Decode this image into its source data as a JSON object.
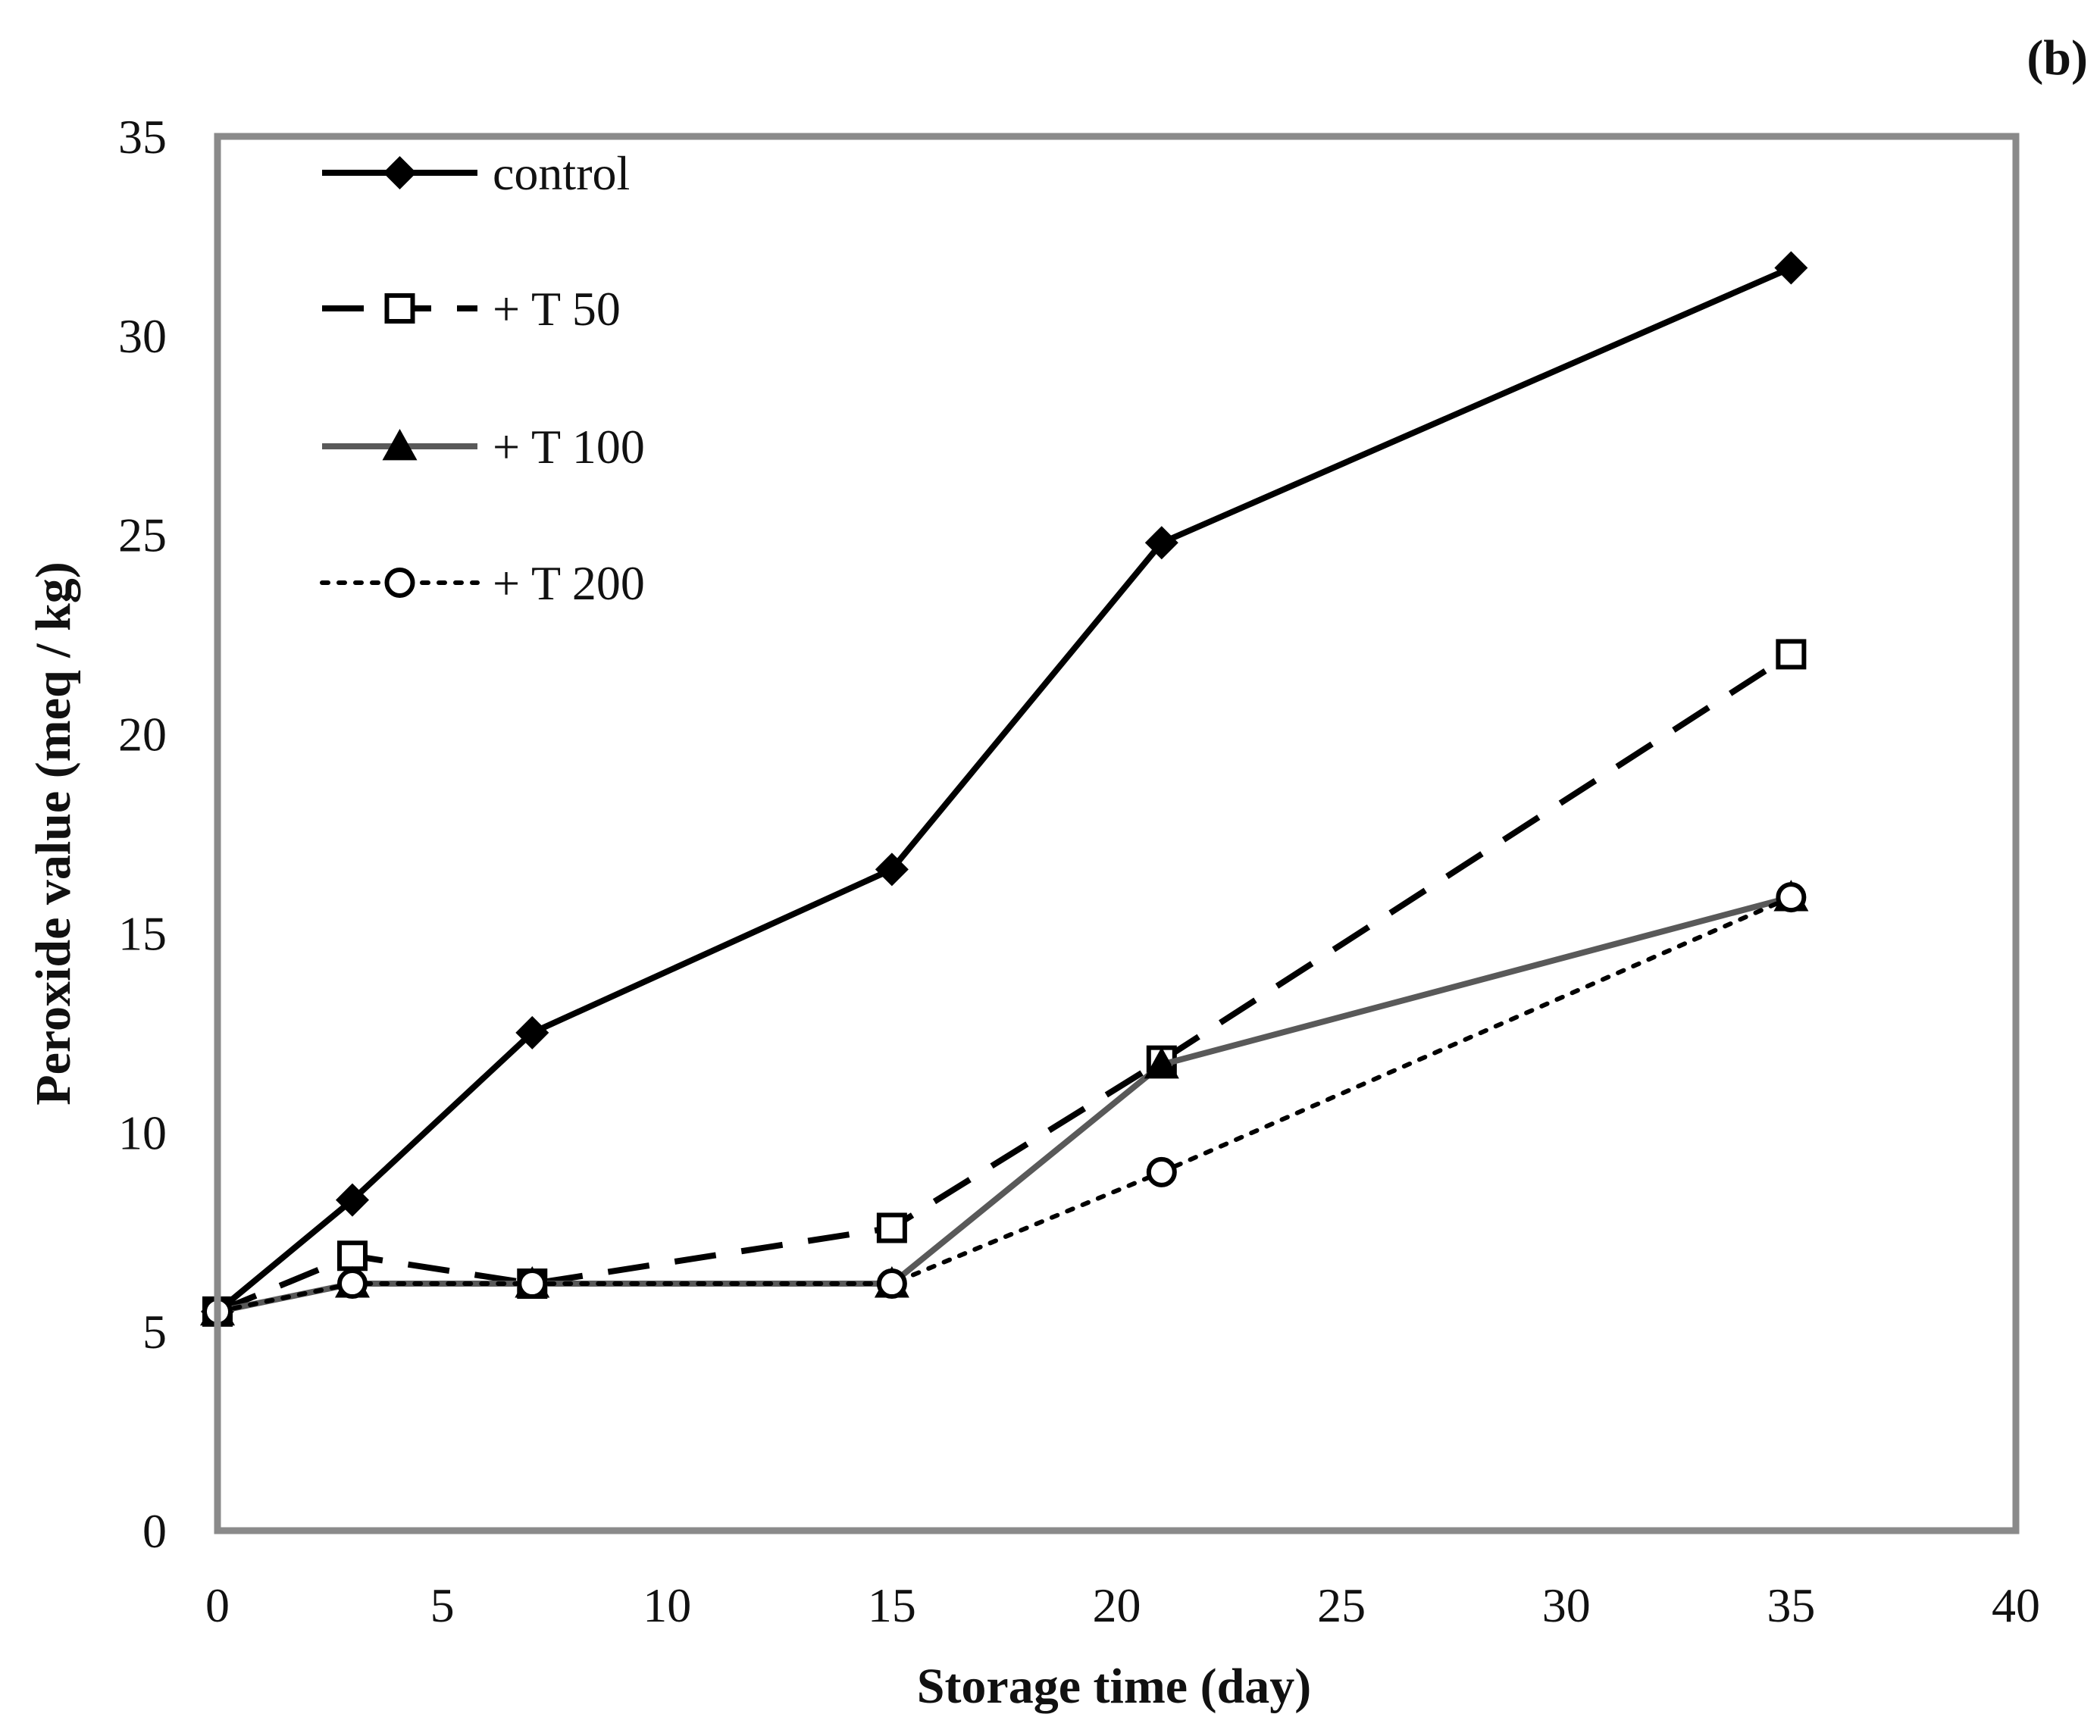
{
  "chart_data": {
    "type": "line",
    "panel_label": "(b)",
    "xlabel": "Storage time (day)",
    "ylabel": "Peroxide value (meq / kg)",
    "xlim": [
      0,
      40
    ],
    "ylim": [
      0,
      35
    ],
    "xticks": [
      0,
      5,
      10,
      15,
      20,
      25,
      30,
      35,
      40
    ],
    "yticks": [
      0,
      5,
      10,
      15,
      20,
      25,
      30,
      35
    ],
    "grid": false,
    "legend_position": "top-left",
    "x": [
      0,
      3,
      7,
      15,
      21,
      35
    ],
    "series": [
      {
        "name": "control",
        "values": [
          5.5,
          8.3,
          12.5,
          16.6,
          24.8,
          31.7
        ],
        "color": "#000000",
        "dash": "solid",
        "marker": "diamond"
      },
      {
        "name": "+ T 50",
        "values": [
          5.5,
          6.9,
          6.2,
          7.6,
          11.8,
          22.0
        ],
        "color": "#000000",
        "dash": "dashed",
        "marker": "square-open"
      },
      {
        "name": "+ T 100",
        "values": [
          5.5,
          6.2,
          6.2,
          6.2,
          11.7,
          15.9
        ],
        "color": "#595959",
        "dash": "solid",
        "marker": "triangle"
      },
      {
        "name": "+ T 200",
        "values": [
          5.5,
          6.2,
          6.2,
          6.2,
          9.0,
          15.9
        ],
        "color": "#000000",
        "dash": "dotted",
        "marker": "circle-open"
      }
    ]
  }
}
